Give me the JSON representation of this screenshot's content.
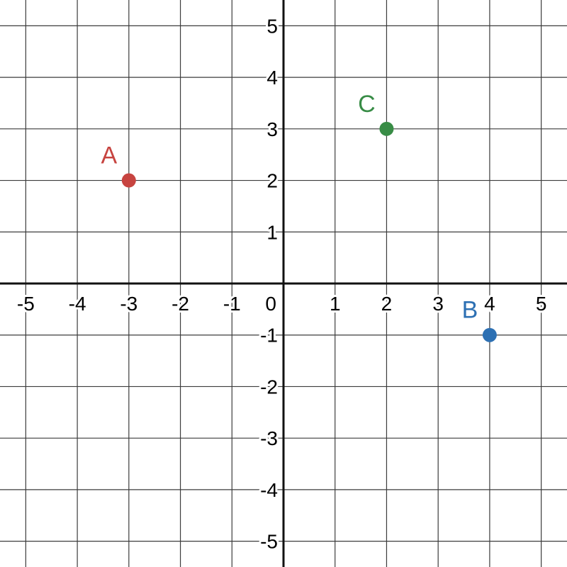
{
  "chart_data": {
    "type": "scatter",
    "grid": true,
    "xlim": [
      -5.5,
      5.5
    ],
    "ylim": [
      -5.5,
      5.5
    ],
    "x_ticks": [
      -5,
      -4,
      -3,
      -2,
      -1,
      1,
      2,
      3,
      4,
      5
    ],
    "y_ticks": [
      -5,
      -4,
      -3,
      -2,
      -1,
      1,
      2,
      3,
      4,
      5
    ],
    "origin_label": "0",
    "points": [
      {
        "label": "A",
        "x": -3,
        "y": 2,
        "color": "#c74440",
        "label_side": "upper-left"
      },
      {
        "label": "B",
        "x": 4,
        "y": -1,
        "color": "#2d70b3",
        "label_side": "upper-left"
      },
      {
        "label": "C",
        "x": 2,
        "y": 3,
        "color": "#388c46",
        "label_side": "upper-left"
      }
    ]
  }
}
